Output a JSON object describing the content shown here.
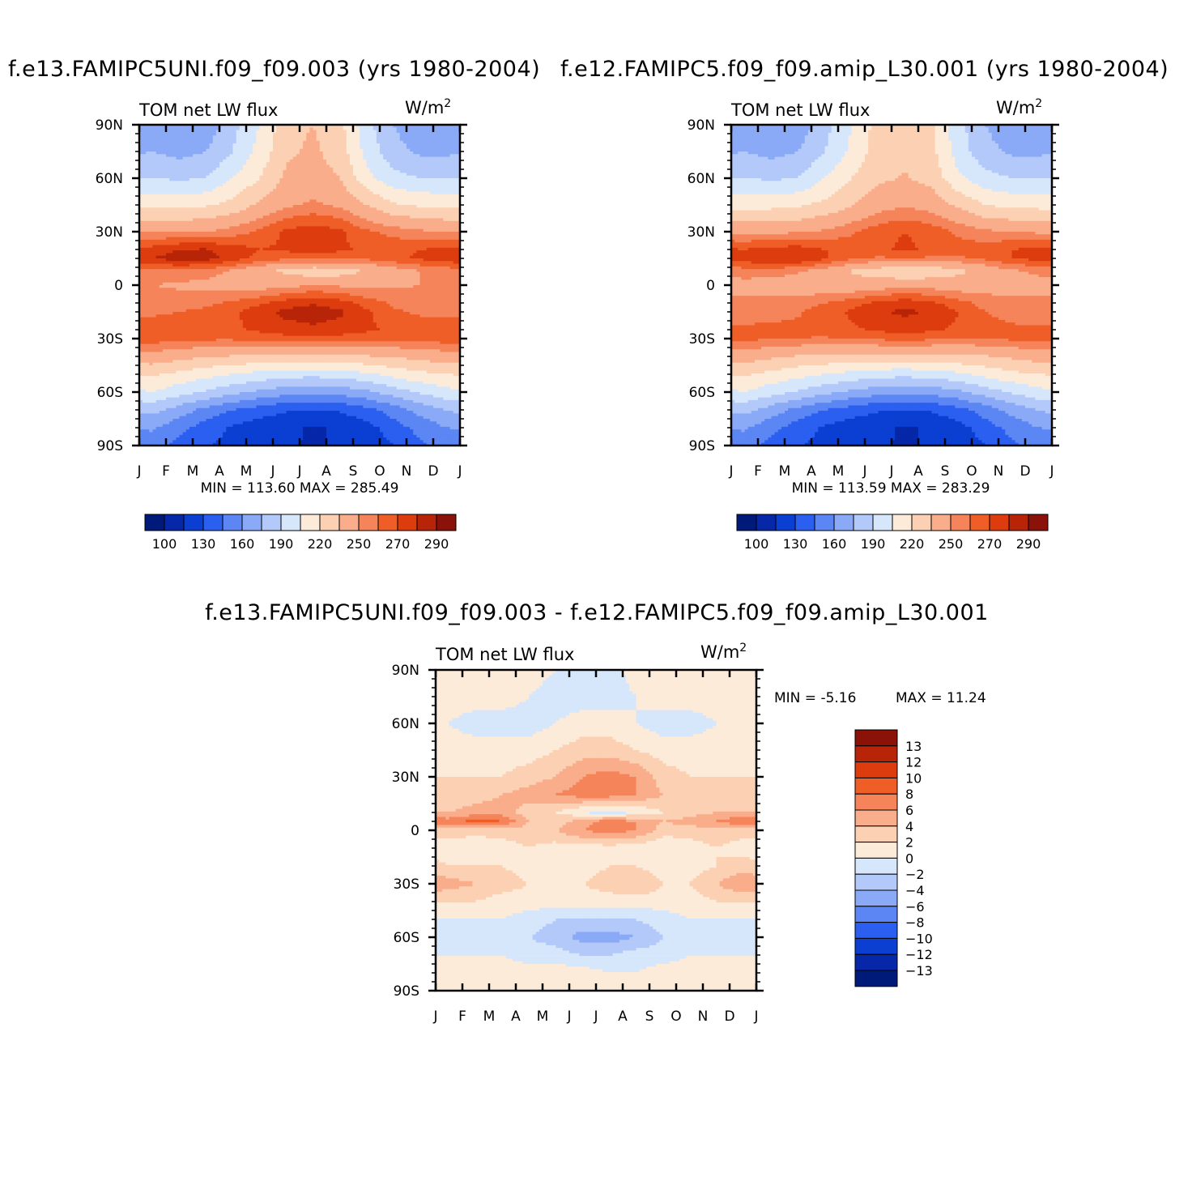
{
  "colors": {
    "palette": [
      "#001a7a",
      "#0627a8",
      "#0b3fd2",
      "#2a5ff0",
      "#5b86f4",
      "#8aaaf7",
      "#b3c9f9",
      "#d6e6fb",
      "#fdebd9",
      "#fcd0b3",
      "#f9ad8a",
      "#f5845a",
      "#f05e28",
      "#dd3c0e",
      "#b82408",
      "#8a1208"
    ]
  },
  "panels": [
    {
      "title": "f.e13.FAMIPC5UNI.f09_f09.003 (yrs 1980-2004)",
      "left_label": "TOM net LW flux",
      "right_label": "W/m",
      "right_label_sup": "2",
      "stats": "MIN = 113.60 MAX = 285.49",
      "colorbar_labels": [
        "100",
        "130",
        "160",
        "190",
        "220",
        "250",
        "270",
        "290"
      ]
    },
    {
      "title": "f.e12.FAMIPC5.f09_f09.amip_L30.001 (yrs 1980-2004)",
      "left_label": "TOM net LW flux",
      "right_label": "W/m",
      "right_label_sup": "2",
      "stats": "MIN = 113.59 MAX = 283.29",
      "colorbar_labels": [
        "100",
        "130",
        "160",
        "190",
        "220",
        "250",
        "270",
        "290"
      ]
    },
    {
      "title": "f.e13.FAMIPC5UNI.f09_f09.003 - f.e12.FAMIPC5.f09_f09.amip_L30.001",
      "left_label": "TOM net LW flux",
      "right_label": "W/m",
      "right_label_sup": "2",
      "stats_min": "MIN =  -5.16",
      "stats_max": "MAX =  11.24",
      "colorbar_labels": [
        "13",
        "12",
        "10",
        "8",
        "6",
        "4",
        "2",
        "0",
        "-2",
        "-4",
        "-6",
        "-8",
        "-10",
        "-12",
        "-13"
      ]
    }
  ],
  "chart_data": [
    {
      "type": "heatmap",
      "title": "f.e13.FAMIPC5UNI.f09_f09.003 (yrs 1980-2004)",
      "variable": "TOM net LW flux",
      "units": "W/m2",
      "x_tick_labels": [
        "J",
        "F",
        "M",
        "A",
        "M",
        "J",
        "J",
        "A",
        "S",
        "O",
        "N",
        "D",
        "J"
      ],
      "y_tick_labels": [
        "90N",
        "60N",
        "30N",
        "0",
        "30S",
        "60S",
        "90S"
      ],
      "y_values": [
        90,
        60,
        30,
        0,
        -30,
        -60,
        -90
      ],
      "levels": [
        100,
        115,
        130,
        145,
        160,
        175,
        190,
        205,
        220,
        235,
        250,
        260,
        270,
        280,
        290
      ],
      "min": 113.6,
      "max": 285.49,
      "lat_bands": [
        {
          "lat": 90,
          "values": [
            165,
            160,
            165,
            185,
            205,
            230,
            235,
            225,
            195,
            175,
            165,
            163
          ]
        },
        {
          "lat": 75,
          "values": [
            175,
            170,
            175,
            190,
            210,
            232,
            238,
            228,
            200,
            180,
            172,
            172
          ]
        },
        {
          "lat": 60,
          "values": [
            190,
            188,
            190,
            205,
            220,
            238,
            242,
            235,
            210,
            195,
            190,
            190
          ]
        },
        {
          "lat": 45,
          "values": [
            215,
            215,
            218,
            225,
            238,
            248,
            252,
            248,
            235,
            222,
            218,
            216
          ]
        },
        {
          "lat": 30,
          "values": [
            250,
            250,
            250,
            255,
            262,
            272,
            276,
            272,
            262,
            256,
            252,
            250
          ]
        },
        {
          "lat": 20,
          "values": [
            274,
            280,
            281,
            275,
            270,
            272,
            275,
            272,
            268,
            268,
            270,
            272
          ]
        },
        {
          "lat": 15,
          "values": [
            280,
            285,
            284,
            276,
            266,
            262,
            264,
            262,
            262,
            266,
            272,
            276
          ]
        },
        {
          "lat": 8,
          "values": [
            258,
            258,
            256,
            248,
            238,
            232,
            225,
            228,
            236,
            244,
            250,
            254
          ]
        },
        {
          "lat": 0,
          "values": [
            250,
            248,
            246,
            244,
            244,
            246,
            250,
            248,
            246,
            248,
            250,
            250
          ]
        },
        {
          "lat": -10,
          "values": [
            255,
            256,
            258,
            262,
            268,
            275,
            279,
            275,
            266,
            258,
            255,
            255
          ]
        },
        {
          "lat": -15,
          "values": [
            258,
            260,
            262,
            268,
            276,
            283,
            285,
            282,
            272,
            262,
            258,
            258
          ]
        },
        {
          "lat": -25,
          "values": [
            266,
            266,
            266,
            268,
            272,
            276,
            278,
            276,
            272,
            268,
            266,
            266
          ]
        },
        {
          "lat": -30,
          "values": [
            265,
            264,
            262,
            262,
            264,
            266,
            268,
            266,
            264,
            264,
            265,
            265
          ]
        },
        {
          "lat": -40,
          "values": [
            245,
            240,
            236,
            234,
            232,
            232,
            232,
            232,
            234,
            236,
            240,
            244
          ]
        },
        {
          "lat": -50,
          "values": [
            222,
            216,
            210,
            205,
            200,
            196,
            195,
            197,
            202,
            210,
            216,
            220
          ]
        },
        {
          "lat": -60,
          "values": [
            205,
            196,
            188,
            180,
            172,
            166,
            164,
            166,
            172,
            182,
            192,
            200
          ]
        },
        {
          "lat": -70,
          "values": [
            180,
            168,
            155,
            145,
            138,
            132,
            130,
            132,
            140,
            152,
            165,
            176
          ]
        },
        {
          "lat": -80,
          "values": [
            162,
            150,
            138,
            128,
            120,
            117,
            114,
            116,
            124,
            138,
            150,
            160
          ]
        },
        {
          "lat": -90,
          "values": [
            152,
            140,
            132,
            124,
            118,
            116,
            114,
            116,
            120,
            130,
            142,
            150
          ]
        }
      ]
    },
    {
      "type": "heatmap",
      "title": "f.e12.FAMIPC5.f09_f09.amip_L30.001 (yrs 1980-2004)",
      "variable": "TOM net LW flux",
      "units": "W/m2",
      "x_tick_labels": [
        "J",
        "F",
        "M",
        "A",
        "M",
        "J",
        "J",
        "A",
        "S",
        "O",
        "N",
        "D",
        "J"
      ],
      "y_tick_labels": [
        "90N",
        "60N",
        "30N",
        "0",
        "30S",
        "60S",
        "90S"
      ],
      "y_values": [
        90,
        60,
        30,
        0,
        -30,
        -60,
        -90
      ],
      "levels": [
        100,
        115,
        130,
        145,
        160,
        175,
        190,
        205,
        220,
        235,
        250,
        260,
        270,
        280,
        290
      ],
      "min": 113.59,
      "max": 283.29,
      "lat_bands": [
        {
          "lat": 90,
          "values": [
            165,
            160,
            165,
            185,
            205,
            226,
            232,
            222,
            195,
            175,
            165,
            163
          ]
        },
        {
          "lat": 75,
          "values": [
            175,
            170,
            175,
            190,
            208,
            228,
            232,
            224,
            198,
            180,
            172,
            172
          ]
        },
        {
          "lat": 60,
          "values": [
            190,
            188,
            190,
            205,
            220,
            232,
            236,
            230,
            208,
            195,
            190,
            190
          ]
        },
        {
          "lat": 45,
          "values": [
            215,
            215,
            218,
            224,
            234,
            244,
            248,
            244,
            232,
            220,
            216,
            215
          ]
        },
        {
          "lat": 30,
          "values": [
            248,
            248,
            248,
            252,
            258,
            266,
            270,
            266,
            258,
            252,
            250,
            248
          ]
        },
        {
          "lat": 20,
          "values": [
            270,
            274,
            275,
            270,
            266,
            268,
            272,
            268,
            264,
            266,
            270,
            272
          ]
        },
        {
          "lat": 15,
          "values": [
            276,
            280,
            280,
            272,
            262,
            258,
            260,
            258,
            258,
            262,
            270,
            274
          ]
        },
        {
          "lat": 8,
          "values": [
            255,
            255,
            252,
            244,
            234,
            228,
            222,
            225,
            232,
            240,
            248,
            252
          ]
        },
        {
          "lat": 0,
          "values": [
            246,
            244,
            242,
            240,
            240,
            242,
            246,
            244,
            242,
            244,
            246,
            246
          ]
        },
        {
          "lat": -10,
          "values": [
            252,
            254,
            256,
            260,
            266,
            272,
            276,
            272,
            264,
            256,
            252,
            252
          ]
        },
        {
          "lat": -15,
          "values": [
            255,
            257,
            259,
            265,
            272,
            279,
            282,
            279,
            270,
            260,
            256,
            255
          ]
        },
        {
          "lat": -25,
          "values": [
            262,
            262,
            262,
            264,
            268,
            272,
            274,
            272,
            268,
            264,
            262,
            262
          ]
        },
        {
          "lat": -30,
          "values": [
            262,
            261,
            260,
            259,
            260,
            262,
            264,
            262,
            260,
            260,
            262,
            262
          ]
        },
        {
          "lat": -40,
          "values": [
            243,
            238,
            234,
            232,
            230,
            230,
            230,
            230,
            232,
            234,
            238,
            242
          ]
        },
        {
          "lat": -50,
          "values": [
            222,
            216,
            210,
            205,
            200,
            196,
            195,
            197,
            202,
            210,
            216,
            220
          ]
        },
        {
          "lat": -60,
          "values": [
            205,
            196,
            188,
            180,
            172,
            166,
            164,
            166,
            172,
            182,
            192,
            200
          ]
        },
        {
          "lat": -70,
          "values": [
            180,
            168,
            155,
            145,
            138,
            132,
            130,
            132,
            140,
            152,
            165,
            176
          ]
        },
        {
          "lat": -80,
          "values": [
            162,
            150,
            138,
            128,
            120,
            117,
            114,
            116,
            124,
            138,
            150,
            160
          ]
        },
        {
          "lat": -90,
          "values": [
            152,
            140,
            132,
            124,
            118,
            116,
            114,
            116,
            120,
            130,
            142,
            150
          ]
        }
      ]
    },
    {
      "type": "heatmap",
      "title": "f.e13.FAMIPC5UNI.f09_f09.003 - f.e12.FAMIPC5.f09_f09.amip_L30.001",
      "variable": "TOM net LW flux",
      "units": "W/m2",
      "x_tick_labels": [
        "J",
        "F",
        "M",
        "A",
        "M",
        "J",
        "J",
        "A",
        "S",
        "O",
        "N",
        "D",
        "J"
      ],
      "y_tick_labels": [
        "90N",
        "60N",
        "30N",
        "0",
        "30S",
        "60S",
        "90S"
      ],
      "y_values": [
        90,
        60,
        30,
        0,
        -30,
        -60,
        -90
      ],
      "levels": [
        -13,
        -12,
        -10,
        -8,
        -6,
        -4,
        -2,
        0,
        2,
        4,
        6,
        8,
        10,
        12,
        13
      ],
      "min": -5.16,
      "max": 11.24,
      "lat_bands": [
        {
          "lat": 90,
          "values": [
            1,
            1,
            2,
            1,
            0,
            0,
            -1,
            1,
            2,
            2,
            2,
            2
          ]
        },
        {
          "lat": 75,
          "values": [
            1,
            1,
            1,
            0,
            -1,
            -1,
            -1,
            0,
            1,
            1,
            1,
            1
          ]
        },
        {
          "lat": 60,
          "values": [
            0,
            -1,
            -1,
            -1,
            0,
            1,
            1,
            0,
            -1,
            -1,
            0,
            0
          ]
        },
        {
          "lat": 45,
          "values": [
            1,
            1,
            1,
            1,
            2,
            3,
            3,
            2,
            1,
            1,
            1,
            1
          ]
        },
        {
          "lat": 30,
          "values": [
            2,
            2,
            2,
            3,
            4,
            6,
            7,
            6,
            3,
            2,
            2,
            2
          ]
        },
        {
          "lat": 20,
          "values": [
            2,
            3,
            4,
            5,
            6,
            7,
            7,
            6,
            4,
            3,
            3,
            2
          ]
        },
        {
          "lat": 10,
          "values": [
            4,
            5,
            5,
            3,
            2,
            0,
            -1,
            0,
            2,
            3,
            4,
            4
          ]
        },
        {
          "lat": 5,
          "values": [
            7,
            9,
            8,
            4,
            3,
            5,
            7,
            6,
            4,
            5,
            6,
            8
          ]
        },
        {
          "lat": 0,
          "values": [
            3,
            3,
            3,
            3,
            4,
            6,
            7,
            6,
            3,
            3,
            3,
            3
          ]
        },
        {
          "lat": -10,
          "values": [
            1,
            0,
            1,
            2,
            1,
            1,
            1,
            1,
            0,
            1,
            2,
            1
          ]
        },
        {
          "lat": -20,
          "values": [
            2,
            2,
            2,
            1,
            1,
            1,
            2,
            2,
            1,
            1,
            2,
            3
          ]
        },
        {
          "lat": -30,
          "values": [
            5,
            4,
            3,
            2,
            2,
            2,
            3,
            4,
            2,
            2,
            4,
            6
          ]
        },
        {
          "lat": -40,
          "values": [
            2,
            2,
            1,
            1,
            1,
            1,
            1,
            1,
            1,
            1,
            2,
            2
          ]
        },
        {
          "lat": -50,
          "values": [
            0,
            0,
            0,
            -1,
            -2,
            -2,
            -2,
            -2,
            -1,
            0,
            0,
            0
          ]
        },
        {
          "lat": -60,
          "values": [
            -1,
            -1,
            -1,
            -2,
            -3,
            -5,
            -5,
            -4,
            -2,
            -1,
            -1,
            -1
          ]
        },
        {
          "lat": -70,
          "values": [
            0,
            0,
            0,
            -1,
            -1,
            -2,
            -2,
            -1,
            -1,
            0,
            0,
            0
          ]
        },
        {
          "lat": -80,
          "values": [
            1,
            1,
            1,
            1,
            1,
            1,
            0,
            0,
            1,
            1,
            1,
            1
          ]
        },
        {
          "lat": -90,
          "values": [
            1,
            1,
            1,
            1,
            1,
            1,
            0,
            0,
            1,
            1,
            1,
            1
          ]
        }
      ]
    }
  ]
}
